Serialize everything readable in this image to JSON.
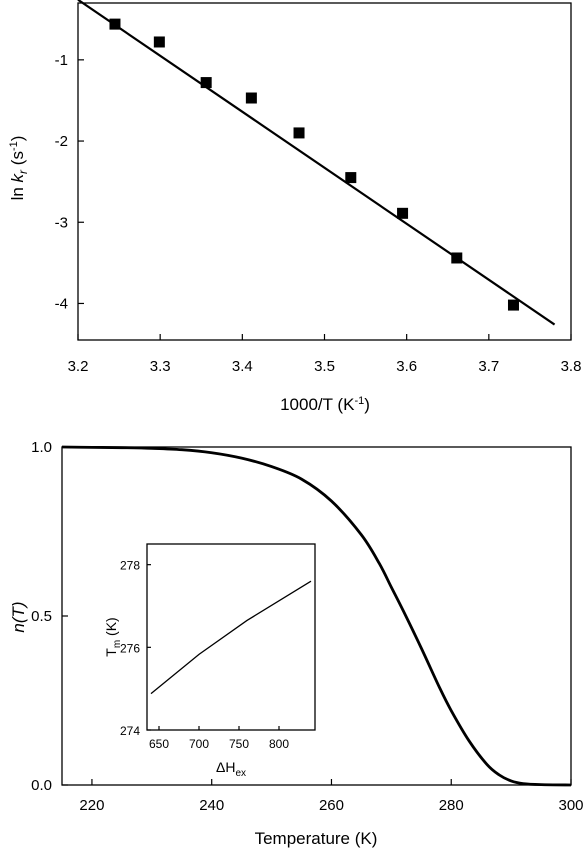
{
  "chart_data": [
    {
      "type": "scatter",
      "xlabel": "1000/T (K⁻¹)",
      "ylabel": "ln kᵣ (s⁻¹)",
      "xlim": [
        3.2,
        3.8
      ],
      "ylim": [
        -4.45,
        -0.3
      ],
      "xticks": [
        "3.2",
        "3.3",
        "3.4",
        "3.5",
        "3.6",
        "3.7",
        "3.8"
      ],
      "xtick_values": [
        3.2,
        3.3,
        3.4,
        3.5,
        3.6,
        3.7,
        3.8
      ],
      "yticks": [
        "-1",
        "-2",
        "-3",
        "-4"
      ],
      "ytick_values": [
        -1,
        -2,
        -3,
        -4
      ],
      "grid": false,
      "points": {
        "x": [
          3.245,
          3.299,
          3.356,
          3.411,
          3.469,
          3.532,
          3.595,
          3.661,
          3.73
        ],
        "y": [
          -0.56,
          -0.78,
          -1.28,
          -1.47,
          -1.9,
          -2.45,
          -2.89,
          -3.44,
          -4.02
        ]
      },
      "fit_line": {
        "x": [
          3.2,
          3.78
        ],
        "y": [
          -0.26,
          -4.26
        ]
      }
    },
    {
      "type": "line",
      "xlabel": "Temperature (K)",
      "ylabel": "n(T)",
      "xlim": [
        215,
        300
      ],
      "ylim": [
        0,
        1
      ],
      "xticks": [
        "220",
        "240",
        "260",
        "280",
        "300"
      ],
      "xtick_values": [
        220,
        240,
        260,
        280,
        300
      ],
      "yticks": [
        "0.0",
        "0.5",
        "1.0"
      ],
      "ytick_values": [
        0,
        0.5,
        1
      ],
      "grid": false,
      "series": [
        {
          "x": [
            215,
            220,
            225,
            230,
            235,
            240,
            245,
            250,
            255,
            260,
            265,
            268,
            270,
            272,
            275,
            278,
            280,
            283,
            286,
            288,
            290,
            292,
            295,
            300
          ],
          "y": [
            1.0,
            0.999,
            0.998,
            0.996,
            0.992,
            0.983,
            0.967,
            0.942,
            0.905,
            0.84,
            0.74,
            0.655,
            0.585,
            0.515,
            0.405,
            0.29,
            0.22,
            0.13,
            0.06,
            0.03,
            0.012,
            0.004,
            0.001,
            0.0
          ]
        }
      ],
      "inset": {
        "type": "line",
        "xlabel": "ΔH",
        "xlabel_sub": "ex",
        "ylabel": "T",
        "ylabel_sub": "m",
        "ylabel_unit": "(K)",
        "xlim": [
          635,
          845
        ],
        "ylim": [
          274,
          278.5
        ],
        "xticks": [
          "650",
          "700",
          "750",
          "800"
        ],
        "xtick_values": [
          650,
          700,
          750,
          800
        ],
        "yticks": [
          "274",
          "276",
          "278"
        ],
        "ytick_values": [
          274,
          276,
          278
        ],
        "x": [
          640,
          700,
          760,
          840
        ],
        "y": [
          274.88,
          275.83,
          276.65,
          277.6
        ]
      }
    }
  ]
}
